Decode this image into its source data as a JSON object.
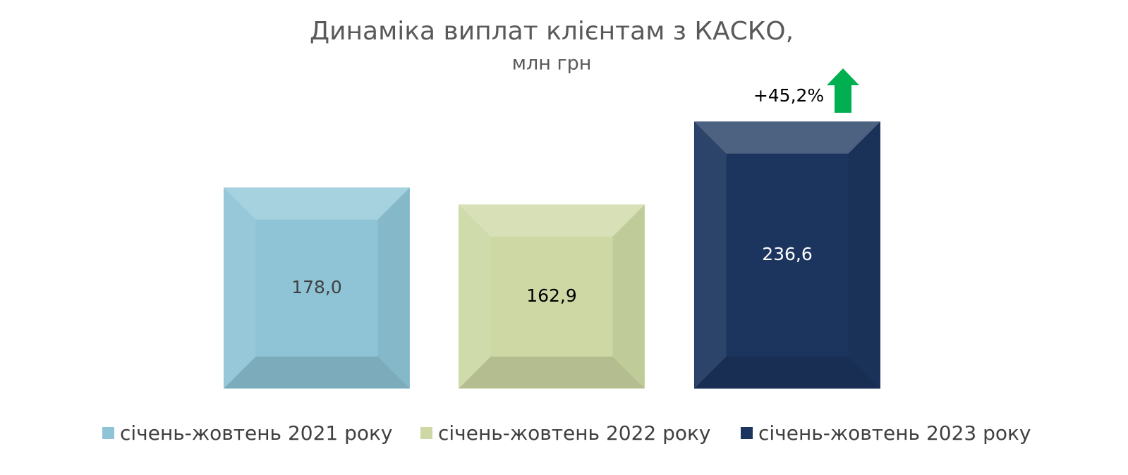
{
  "chart_data": {
    "type": "bar",
    "title": "Динаміка виплат клієнтам з КАСКО,",
    "subtitle": "млн грн",
    "annotation": "+45,2%",
    "series": [
      {
        "name": "січень-жовтень 2021 року",
        "color": "#8ec4d6",
        "values": [
          178.0
        ],
        "value_labels": [
          "178,0"
        ]
      },
      {
        "name": "січень-жовтень 2022 року",
        "color": "#cdd8a4",
        "values": [
          162.9
        ],
        "value_labels": [
          "162,9"
        ]
      },
      {
        "name": "січень-жовтень 2023 року",
        "color": "#1c355e",
        "values": [
          236.6
        ],
        "value_labels": [
          "236,6"
        ]
      }
    ],
    "legend": "bottom"
  }
}
